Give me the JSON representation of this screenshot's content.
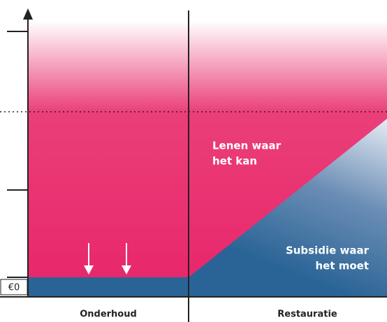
{
  "axis": {
    "zero_label": "€0"
  },
  "regions": {
    "loan": {
      "lines": [
        "Lenen waar",
        "het kan"
      ]
    },
    "subsidy": {
      "lines": [
        "Subsidie waar",
        "het moet"
      ]
    }
  },
  "categories": [
    "Onderhoud",
    "Restauratie"
  ]
}
